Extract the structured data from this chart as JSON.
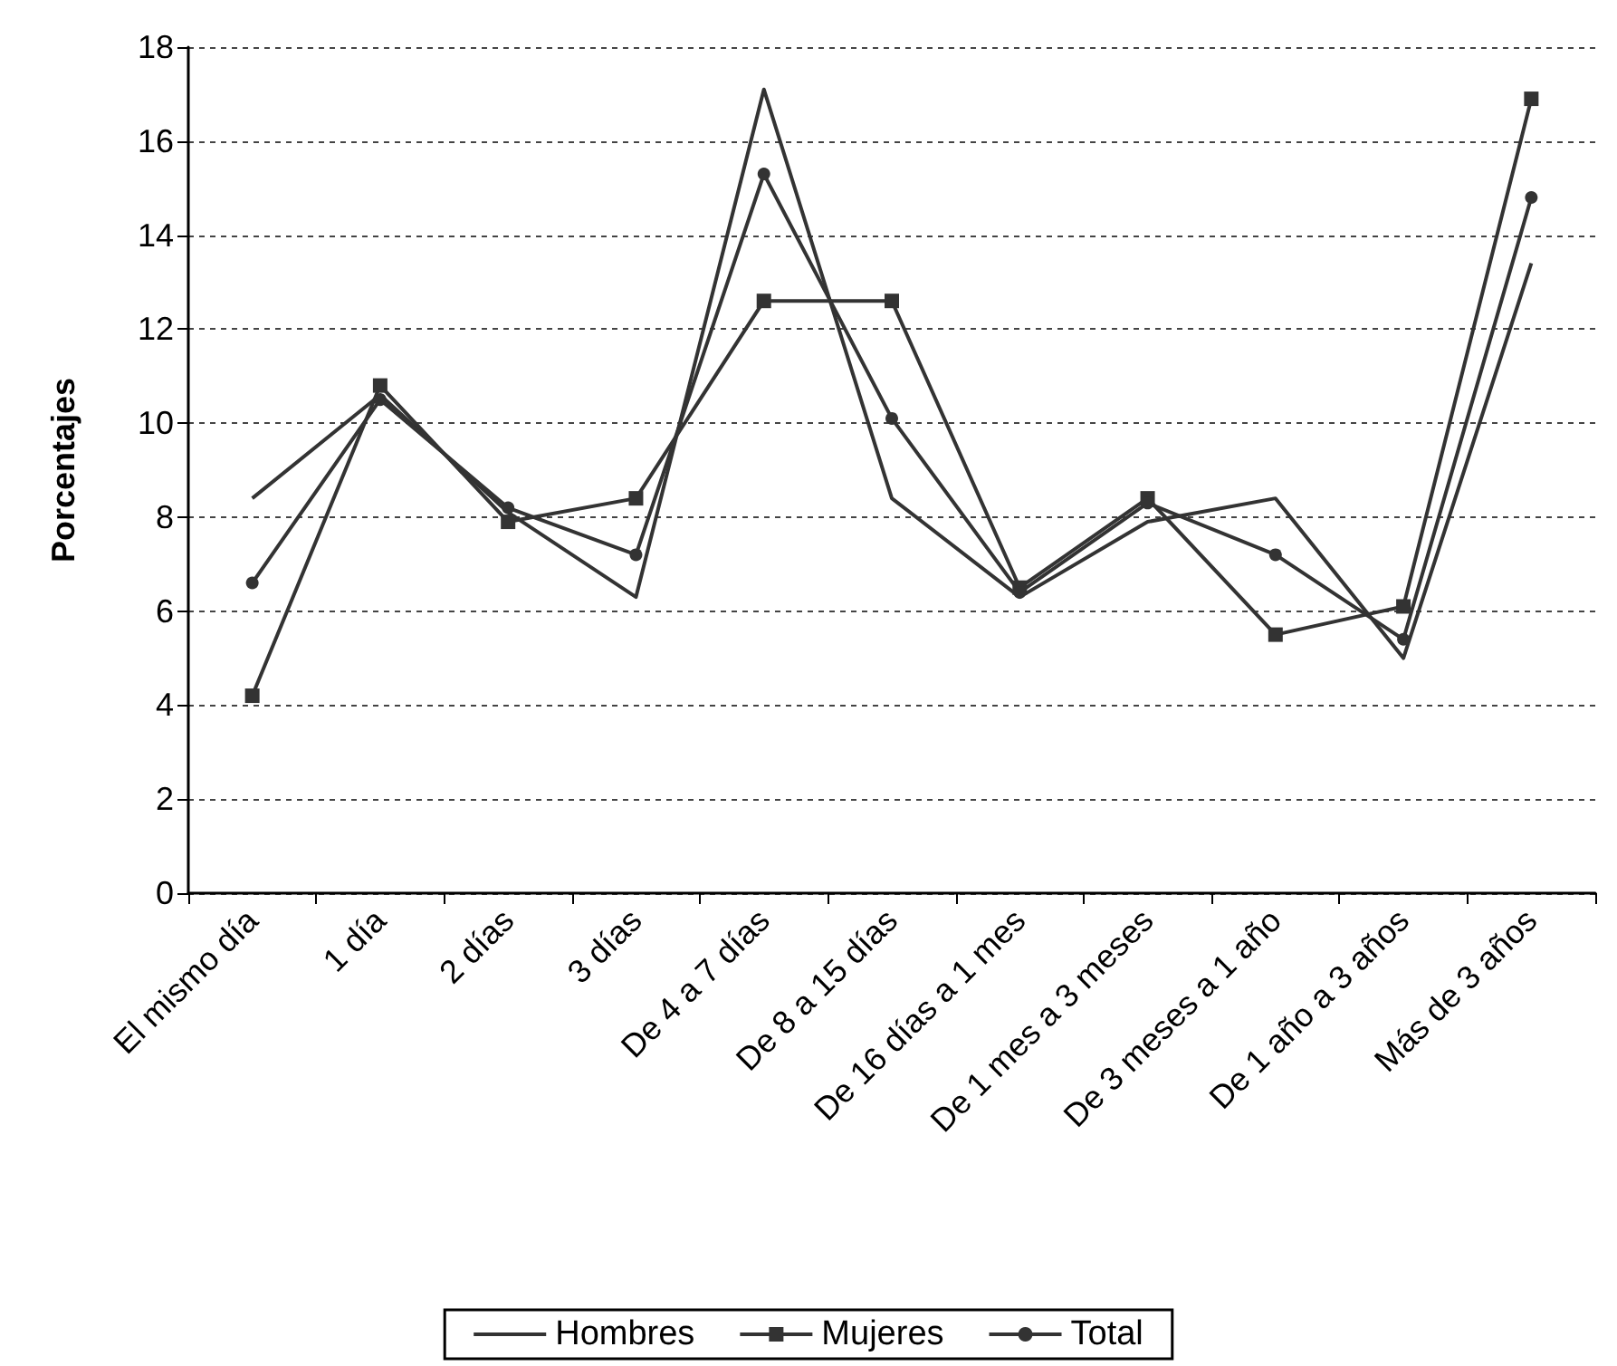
{
  "chart_data": {
    "type": "line",
    "ylabel": "Porcentajes",
    "categories": [
      "El mismo día",
      "1 día",
      "2 días",
      "3 días",
      "De 4 a 7 días",
      "De 8 a 15 días",
      "De 16 días a 1 mes",
      "De 1 mes a 3 meses",
      "De 3 meses a 1 año",
      "De 1 año a 3 años",
      "Más de 3 años"
    ],
    "series": [
      {
        "name": "Hombres",
        "color": "#333333",
        "marker": "none",
        "values": [
          8.4,
          10.6,
          8.1,
          6.3,
          17.1,
          8.4,
          6.3,
          7.9,
          8.4,
          5.0,
          13.4
        ]
      },
      {
        "name": "Mujeres",
        "color": "#333333",
        "marker": "square",
        "values": [
          4.2,
          10.8,
          7.9,
          8.4,
          12.6,
          12.6,
          6.5,
          8.4,
          5.5,
          6.1,
          16.9
        ]
      },
      {
        "name": "Total",
        "color": "#333333",
        "marker": "circle",
        "values": [
          6.6,
          10.5,
          8.2,
          7.2,
          15.3,
          10.1,
          6.4,
          8.3,
          7.2,
          5.4,
          14.8
        ]
      }
    ],
    "ylim": [
      0,
      18
    ],
    "yticks": [
      0,
      2,
      4,
      6,
      8,
      10,
      12,
      14,
      16,
      18
    ],
    "grid": "y",
    "legend": "bottom",
    "line_style": "solid"
  }
}
